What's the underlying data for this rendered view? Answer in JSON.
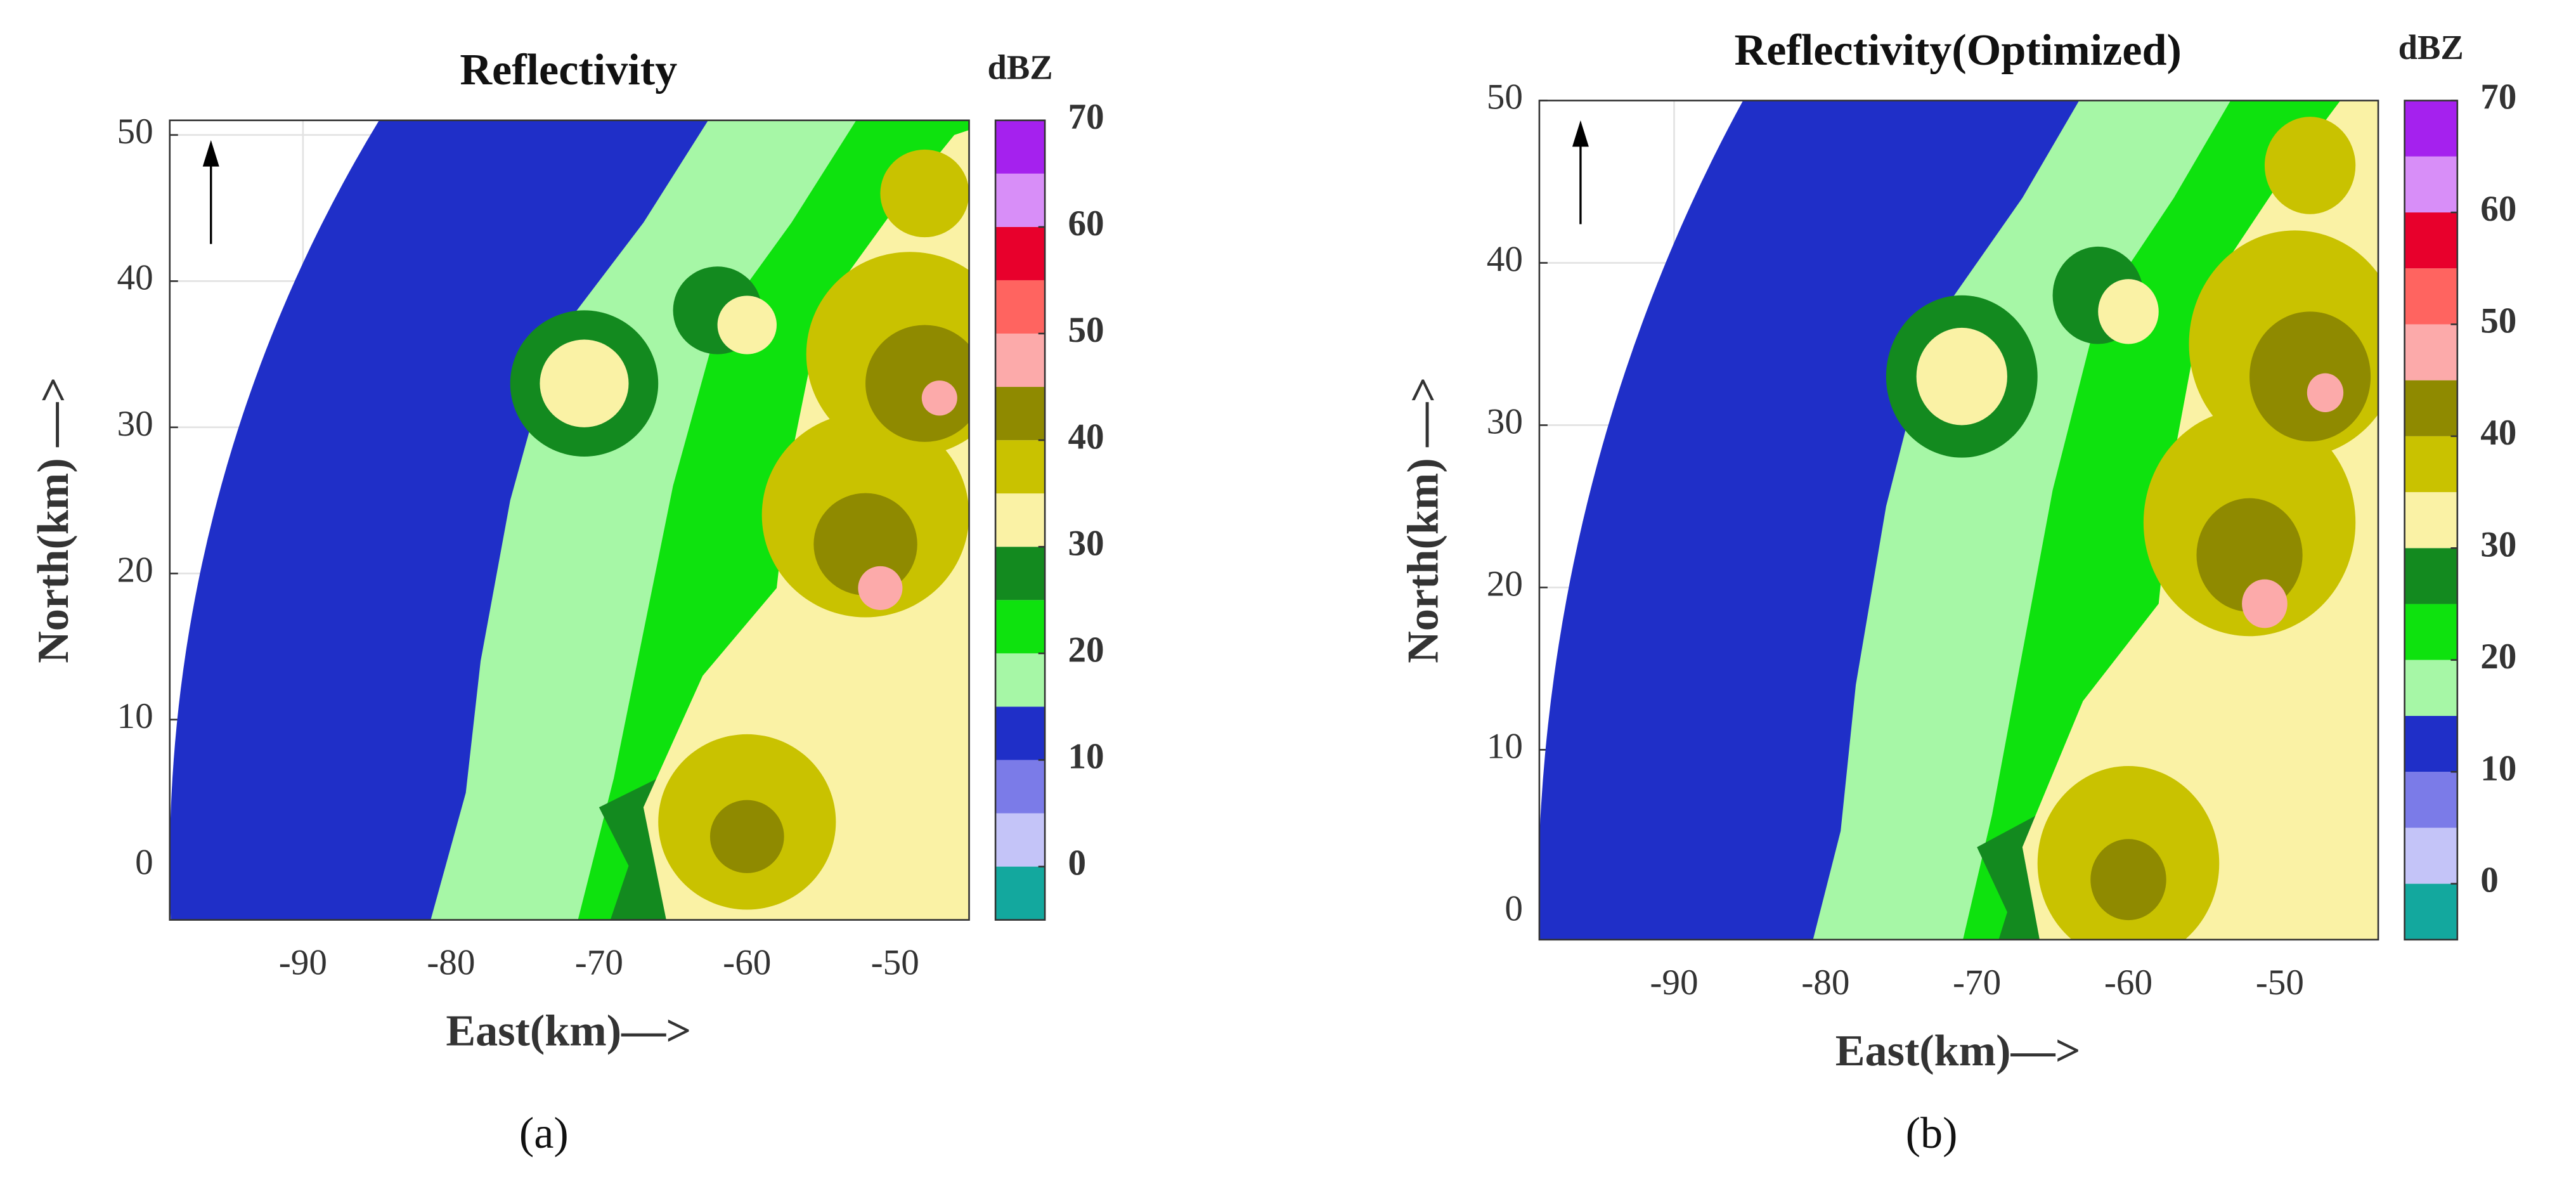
{
  "chart_data": [
    {
      "type": "heatmap",
      "title": "Reflectivity",
      "xlabel": "East(km)—>",
      "ylabel": "North(km)  —>",
      "panel_label": "(a)",
      "xlim": [
        -99.0,
        -45.0
      ],
      "ylim": [
        -3.7,
        51.0
      ],
      "xticks": [
        -90,
        -80,
        -70,
        -60,
        -50
      ],
      "yticks": [
        0,
        10,
        20,
        30,
        40,
        50
      ],
      "grid": true,
      "colorbar": {
        "title": "dBZ",
        "lim": [
          -5,
          70
        ],
        "ticks": [
          0,
          10,
          20,
          30,
          40,
          50,
          60,
          70
        ],
        "colors": [
          "#13a89e",
          "#c4c4f8",
          "#7b7be8",
          "#1f2fc8",
          "#a6f7a6",
          "#0ee20e",
          "#138a1f",
          "#faf2a5",
          "#c9c200",
          "#8f8a00",
          "#fcaaaa",
          "#ff6460",
          "#e8002c",
          "#d88ef8",
          "#a521ee"
        ]
      }
    },
    {
      "type": "heatmap",
      "title": "Reflectivity(Optimized)",
      "xlabel": "East(km)—>",
      "ylabel": "North(km)  —>",
      "panel_label": "(b)",
      "xlim": [
        -98.9,
        -43.5
      ],
      "ylim": [
        -1.7,
        50.0
      ],
      "xticks": [
        -90,
        -80,
        -70,
        -60,
        -50
      ],
      "yticks": [
        0,
        10,
        20,
        30,
        40,
        50
      ],
      "grid": true,
      "colorbar": {
        "title": "dBZ",
        "lim": [
          -5,
          70
        ],
        "ticks": [
          0,
          10,
          20,
          30,
          40,
          50,
          60,
          70
        ],
        "colors": [
          "#13a89e",
          "#c4c4f8",
          "#7b7be8",
          "#1f2fc8",
          "#a6f7a6",
          "#0ee20e",
          "#138a1f",
          "#faf2a5",
          "#c9c200",
          "#8f8a00",
          "#fcaaaa",
          "#ff6460",
          "#e8002c",
          "#d88ef8",
          "#a521ee"
        ]
      }
    }
  ]
}
